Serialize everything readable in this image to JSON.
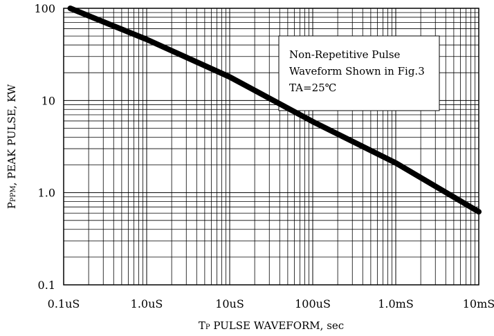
{
  "chart_data": {
    "type": "line",
    "title": "",
    "xlabel": "TP PULSE WAVEFORM, sec",
    "xlabel_parts": {
      "main": "T",
      "sub": "P",
      "rest": " PULSE WAVEFORM, sec"
    },
    "ylabel": "PPPM, PEAK PULSE, KW",
    "ylabel_parts": {
      "main": "P",
      "sub": "PPM",
      "rest": ", PEAK PULSE, KW"
    },
    "x_scale": "log",
    "y_scale": "log",
    "xlim_seconds": [
      1e-07,
      0.01
    ],
    "ylim_kw": [
      0.1,
      100
    ],
    "grid": true,
    "legend": "none",
    "x_ticks": [
      {
        "value": 1e-07,
        "label": "0.1uS"
      },
      {
        "value": 1e-06,
        "label": "1.0uS"
      },
      {
        "value": 1e-05,
        "label": "10uS"
      },
      {
        "value": 0.0001,
        "label": "100uS"
      },
      {
        "value": 0.001,
        "label": "1.0mS"
      },
      {
        "value": 0.01,
        "label": "10mS"
      }
    ],
    "y_ticks": [
      {
        "value": 0.1,
        "label": "0.1"
      },
      {
        "value": 1,
        "label": "1.0"
      },
      {
        "value": 10,
        "label": "10"
      },
      {
        "value": 100,
        "label": "100"
      }
    ],
    "series": [
      {
        "x": [
          1.2e-07,
          1e-06,
          1e-05,
          0.0001,
          0.001,
          0.01
        ],
        "y": [
          100,
          46,
          18,
          5.9,
          2.1,
          0.62
        ],
        "color": "#000000"
      }
    ],
    "annotation": {
      "lines": [
        "Non-Repetitive Pulse",
        "Waveform Shown in Fig.3",
        "TA=25℃"
      ]
    }
  }
}
